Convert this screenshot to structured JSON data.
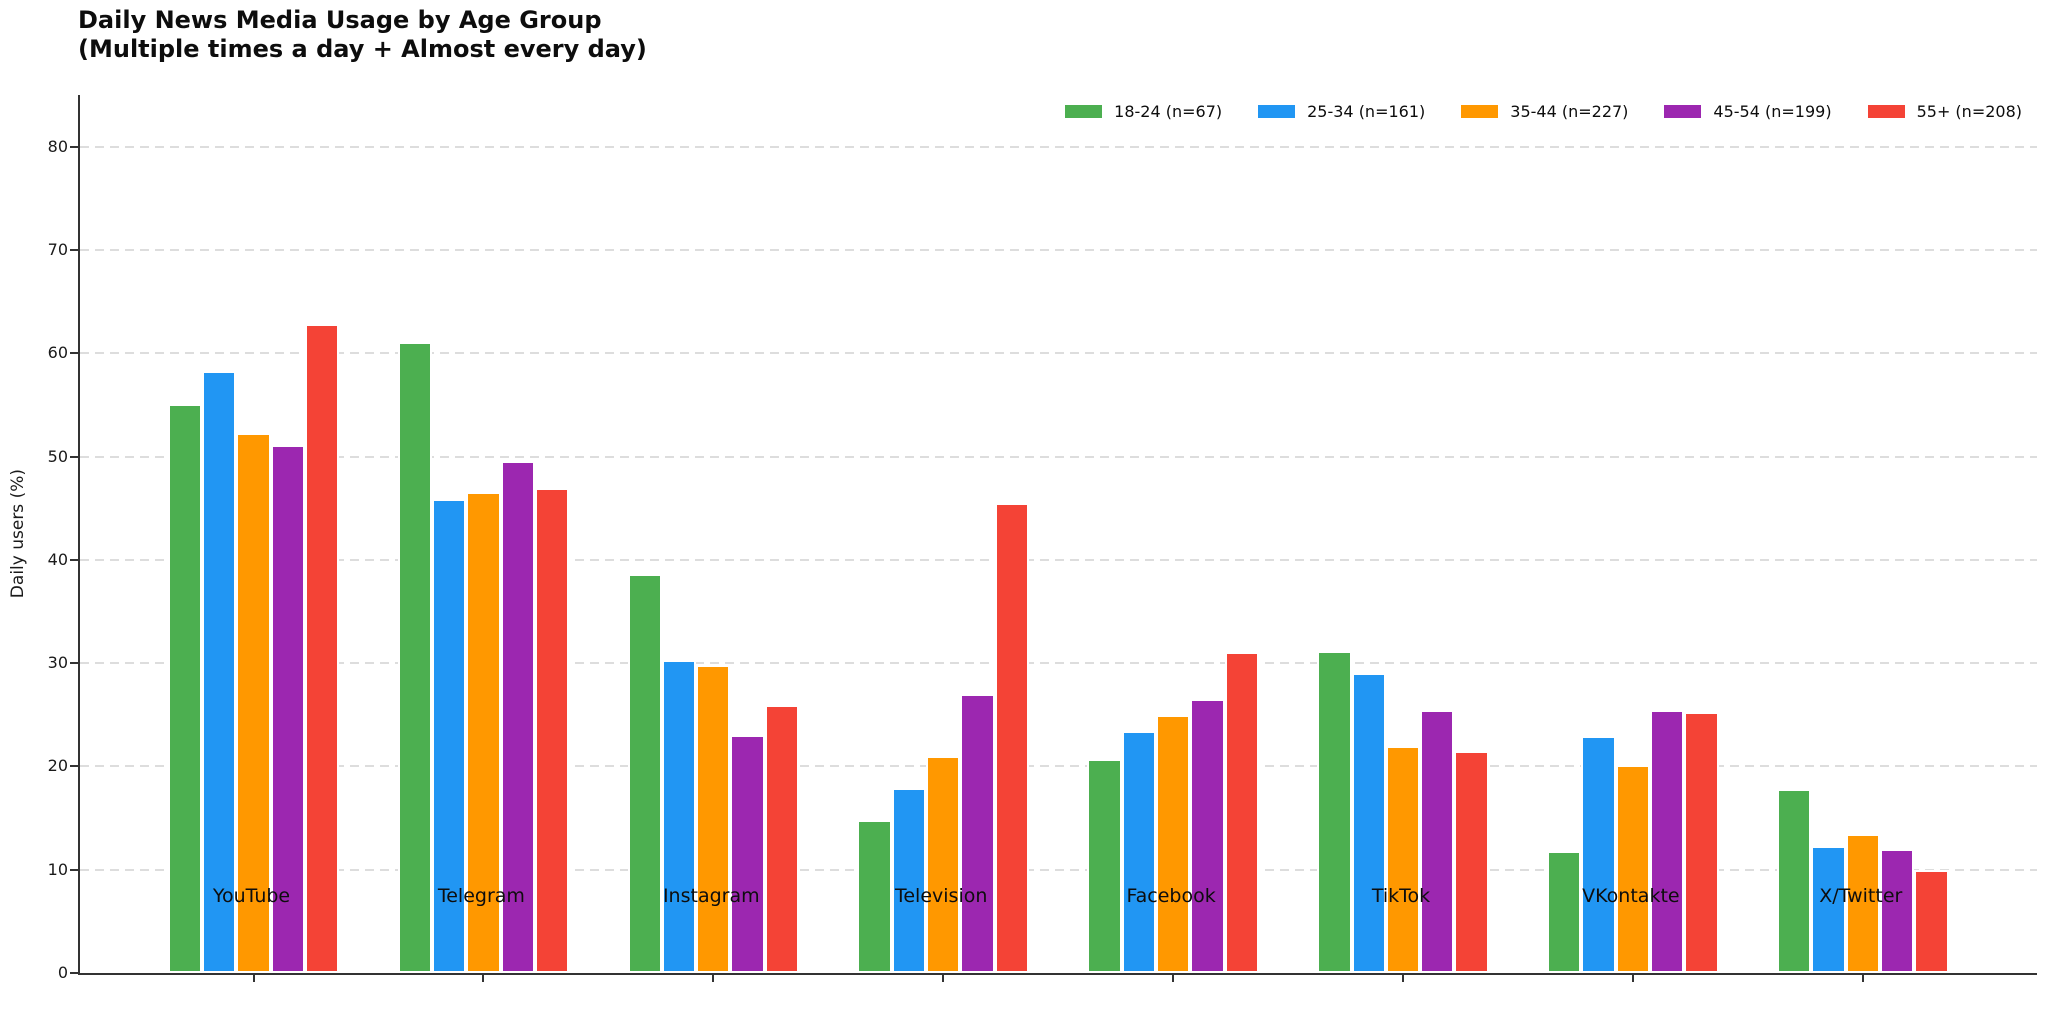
{
  "chart_data": {
    "type": "bar",
    "title": "Daily News Media Usage by Age Group",
    "subtitle": "(Multiple times a day + Almost every day)",
    "ylabel": "Daily users (%)",
    "xlabel": "",
    "ylim": [
      0,
      85
    ],
    "yticks": [
      0,
      10,
      20,
      30,
      40,
      50,
      60,
      70,
      80
    ],
    "grid": "horizontal dashed",
    "legend_position": "top right, horizontal, no frame",
    "categories": [
      "YouTube",
      "Telegram",
      "Instagram",
      "Television",
      "Facebook",
      "TikTok",
      "VKontakte",
      "X/Twitter"
    ],
    "series": [
      {
        "name": "18-24 (n=67)",
        "color": "#4CAF50",
        "values": [
          55.1,
          61.1,
          38.6,
          14.8,
          20.7,
          31.2,
          11.8,
          17.8
        ]
      },
      {
        "name": "25-34 (n=161)",
        "color": "#2196F3",
        "values": [
          58.3,
          45.9,
          30.3,
          17.9,
          23.4,
          29.0,
          22.9,
          12.3
        ]
      },
      {
        "name": "35-44 (n=227)",
        "color": "#FF9800",
        "values": [
          52.3,
          46.6,
          29.8,
          21.0,
          25.0,
          22.0,
          20.1,
          13.5
        ]
      },
      {
        "name": "45-54 (n=199)",
        "color": "#9C27B0",
        "values": [
          51.1,
          49.6,
          23.0,
          27.0,
          26.5,
          25.5,
          25.5,
          12.0
        ]
      },
      {
        "name": "55+ (n=208)",
        "color": "#F44336",
        "values": [
          62.8,
          47.0,
          25.9,
          45.5,
          31.1,
          21.5,
          25.3,
          10.0
        ]
      }
    ],
    "axis_color": "#333333",
    "grid_color": "#dddddd"
  }
}
